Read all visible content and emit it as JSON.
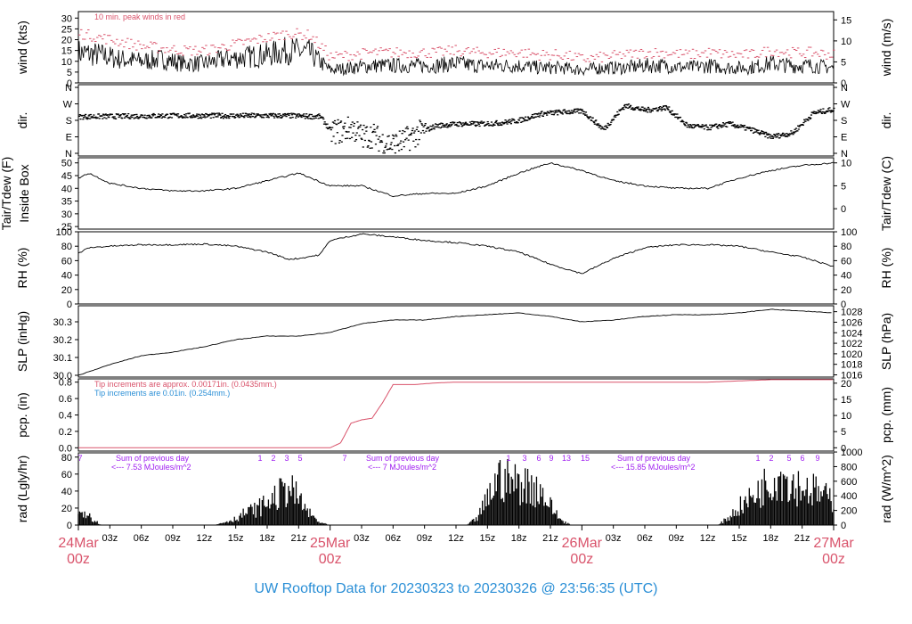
{
  "footer": "UW Rooftop Data for 20230323  to  20230326 @ 23:56:35  (UTC)",
  "colors": {
    "accent_red": "#d9536b",
    "accent_blue": "#2b8fd6",
    "accent_purple": "#a020f0",
    "trace": "#000000"
  },
  "chart_data": [
    {
      "type": "line",
      "panel": "wind",
      "ylabel": "wind (kts)",
      "ylabel_right": "wind (m/s)",
      "ylim": [
        0,
        33
      ],
      "yticks": [
        0,
        5,
        10,
        15,
        20,
        25,
        30
      ],
      "yticks_right": [
        0,
        5,
        10,
        15
      ],
      "annotation": "10 min. peak winds in red",
      "x": [
        0,
        2,
        4,
        6,
        8,
        10,
        12,
        14,
        16,
        18,
        20,
        22,
        24,
        26,
        28,
        30,
        32,
        34,
        36,
        38,
        40,
        42,
        44,
        46,
        48,
        50,
        52,
        54,
        56,
        58,
        60,
        62,
        64,
        66,
        68,
        70,
        72
      ],
      "series": [
        {
          "values": [
            14,
            13,
            11,
            10,
            11,
            9,
            9,
            11,
            12,
            13,
            15,
            14,
            6,
            7,
            8,
            8,
            8,
            8,
            9,
            8,
            8,
            8,
            7,
            7,
            6,
            7,
            7,
            8,
            8,
            7,
            8,
            7,
            7,
            9,
            8,
            8,
            7
          ]
        },
        {
          "values": [
            23,
            21,
            19,
            17,
            16,
            15,
            15,
            17,
            19,
            21,
            23,
            22,
            12,
            13,
            14,
            14,
            14,
            14,
            15,
            14,
            14,
            14,
            13,
            13,
            11,
            12,
            13,
            14,
            14,
            13,
            14,
            13,
            13,
            15,
            14,
            14,
            13
          ]
        }
      ]
    },
    {
      "type": "scatter",
      "panel": "dir",
      "ylabel": "dir.",
      "ylabel_right": "dir.",
      "yticks": [
        "N",
        "E",
        "S",
        "W",
        "N"
      ],
      "x": [
        0,
        4,
        8,
        12,
        16,
        20,
        23,
        24,
        25,
        26,
        27,
        28,
        29,
        30,
        31,
        32,
        34,
        36,
        38,
        40,
        42,
        44,
        46,
        48,
        50,
        52,
        54,
        56,
        58,
        60,
        62,
        64,
        66,
        68,
        70,
        72
      ],
      "values": [
        200,
        202,
        205,
        205,
        205,
        205,
        200,
        120,
        120,
        140,
        90,
        100,
        60,
        50,
        70,
        100,
        150,
        160,
        160,
        165,
        180,
        215,
        225,
        230,
        130,
        260,
        235,
        250,
        150,
        140,
        160,
        130,
        90,
        110,
        220,
        240
      ]
    },
    {
      "type": "line",
      "panel": "temp",
      "ylabel": "Tair/Tdew (F)",
      "ylabel2": "Inside Box",
      "ylabel_right": "Tair/Tdew (C)",
      "ylim": [
        24,
        52
      ],
      "yticks": [
        25,
        30,
        35,
        40,
        45,
        50
      ],
      "yticks_right": [
        0,
        5,
        10
      ],
      "x": [
        0,
        1,
        3,
        6,
        9,
        12,
        15,
        18,
        21,
        24,
        27,
        30,
        33,
        36,
        39,
        42,
        45,
        48,
        51,
        54,
        57,
        60,
        63,
        66,
        69,
        72
      ],
      "values": [
        44,
        46,
        42,
        40,
        39,
        39,
        40,
        43,
        46,
        41,
        41,
        37,
        38,
        38,
        41,
        46,
        50,
        47,
        43,
        41,
        40,
        40,
        44,
        47,
        49,
        50
      ]
    },
    {
      "type": "line",
      "panel": "rh",
      "ylabel": "RH (%)",
      "ylabel_right": "RH (%)",
      "ylim": [
        0,
        100
      ],
      "yticks": [
        0,
        20,
        40,
        60,
        80,
        100
      ],
      "x": [
        0,
        1,
        3,
        6,
        9,
        12,
        15,
        18,
        20,
        21,
        23,
        24,
        27,
        30,
        33,
        36,
        39,
        42,
        45,
        48,
        51,
        54,
        57,
        60,
        63,
        66,
        69,
        72
      ],
      "values": [
        70,
        78,
        80,
        82,
        82,
        83,
        80,
        72,
        62,
        63,
        68,
        88,
        97,
        93,
        88,
        85,
        80,
        72,
        55,
        42,
        63,
        78,
        82,
        82,
        80,
        72,
        65,
        52
      ]
    },
    {
      "type": "line",
      "panel": "slp",
      "ylabel": "SLP (inHg)",
      "ylabel_right": "SLP (hPa)",
      "ylim": [
        29.99,
        30.39
      ],
      "yticks": [
        30.0,
        30.1,
        30.2,
        30.3
      ],
      "yticks_right": [
        1016,
        1018,
        1020,
        1022,
        1024,
        1026,
        1028
      ],
      "x": [
        0,
        3,
        6,
        9,
        12,
        15,
        18,
        21,
        24,
        27,
        30,
        33,
        36,
        39,
        42,
        45,
        48,
        51,
        54,
        57,
        60,
        63,
        66,
        69,
        72
      ],
      "values": [
        30.0,
        30.06,
        30.11,
        30.13,
        30.16,
        30.2,
        30.22,
        30.22,
        30.24,
        30.29,
        30.31,
        30.31,
        30.33,
        30.34,
        30.35,
        30.33,
        30.3,
        30.31,
        30.33,
        30.34,
        30.34,
        30.35,
        30.37,
        30.36,
        30.35
      ]
    },
    {
      "type": "line",
      "panel": "pcp",
      "ylabel": "pcp. (in)",
      "ylabel_right": "pcp. (mm)",
      "ylim": [
        -0.04,
        0.84
      ],
      "yticks": [
        0.0,
        0.2,
        0.4,
        0.6,
        0.8
      ],
      "yticks_right": [
        0,
        5,
        10,
        15,
        20
      ],
      "notes": [
        "Tip increments are approx. 0.00171in. (0.0435mm.)",
        "Tip increments are 0.01in. (0.254mm.)"
      ],
      "x": [
        0,
        24,
        25,
        26,
        27,
        28,
        29,
        30,
        32,
        34,
        36,
        38,
        40,
        48,
        60,
        66,
        72
      ],
      "values": [
        0.0,
        0.0,
        0.06,
        0.3,
        0.34,
        0.36,
        0.55,
        0.77,
        0.77,
        0.79,
        0.8,
        0.8,
        0.8,
        0.8,
        0.8,
        0.83,
        0.83
      ]
    },
    {
      "type": "area",
      "panel": "rad",
      "ylabel": "rad (Lgly/hr)",
      "ylabel_right": "rad (W/m^2)",
      "ylim": [
        0,
        85
      ],
      "yticks": [
        0,
        20,
        40,
        60,
        80
      ],
      "yticks_right": [
        0,
        200,
        400,
        600,
        800,
        1000
      ],
      "x": [
        0,
        0.5,
        1,
        1.5,
        2,
        2.5,
        13,
        15,
        16,
        17,
        18,
        19,
        20,
        21,
        22,
        23,
        24,
        37,
        38,
        39,
        40,
        41,
        42,
        43,
        44,
        45,
        46,
        47,
        48,
        61,
        62,
        63,
        64,
        65,
        66,
        67,
        68,
        69,
        70,
        71,
        72
      ],
      "values": [
        15,
        25,
        18,
        8,
        2,
        0,
        0,
        10,
        20,
        25,
        35,
        45,
        60,
        40,
        18,
        4,
        0,
        0,
        10,
        40,
        75,
        68,
        65,
        62,
        55,
        30,
        8,
        0,
        0,
        0,
        12,
        28,
        40,
        55,
        70,
        80,
        65,
        60,
        55,
        45,
        40
      ],
      "annotations": [
        "Sum of previous day",
        "<--- 7.53 MJoules/m^2",
        "Sum of previous day",
        "<--- 7 MJoules/m^2",
        "Sum of previous day",
        "<--- 15.85 MJoules/m^2"
      ],
      "hour_marks": [
        "7",
        "1",
        "2",
        "3",
        "5",
        "7",
        "1",
        "3",
        "6",
        "9",
        "13",
        "15",
        "1",
        "2",
        "5",
        "6",
        "9"
      ]
    }
  ],
  "x_axis": {
    "hour_labels": [
      "03z",
      "06z",
      "09z",
      "12z",
      "15z",
      "18z",
      "21z",
      "03z",
      "06z",
      "09z",
      "12z",
      "15z",
      "18z",
      "21z",
      "03z",
      "06z",
      "09z",
      "12z",
      "15z",
      "18z",
      "21z"
    ],
    "day_labels": [
      {
        "date": "24Mar",
        "time": "00z"
      },
      {
        "date": "25Mar",
        "time": "00z"
      },
      {
        "date": "26Mar",
        "time": "00z"
      },
      {
        "date": "27Mar",
        "time": "00z"
      }
    ]
  }
}
